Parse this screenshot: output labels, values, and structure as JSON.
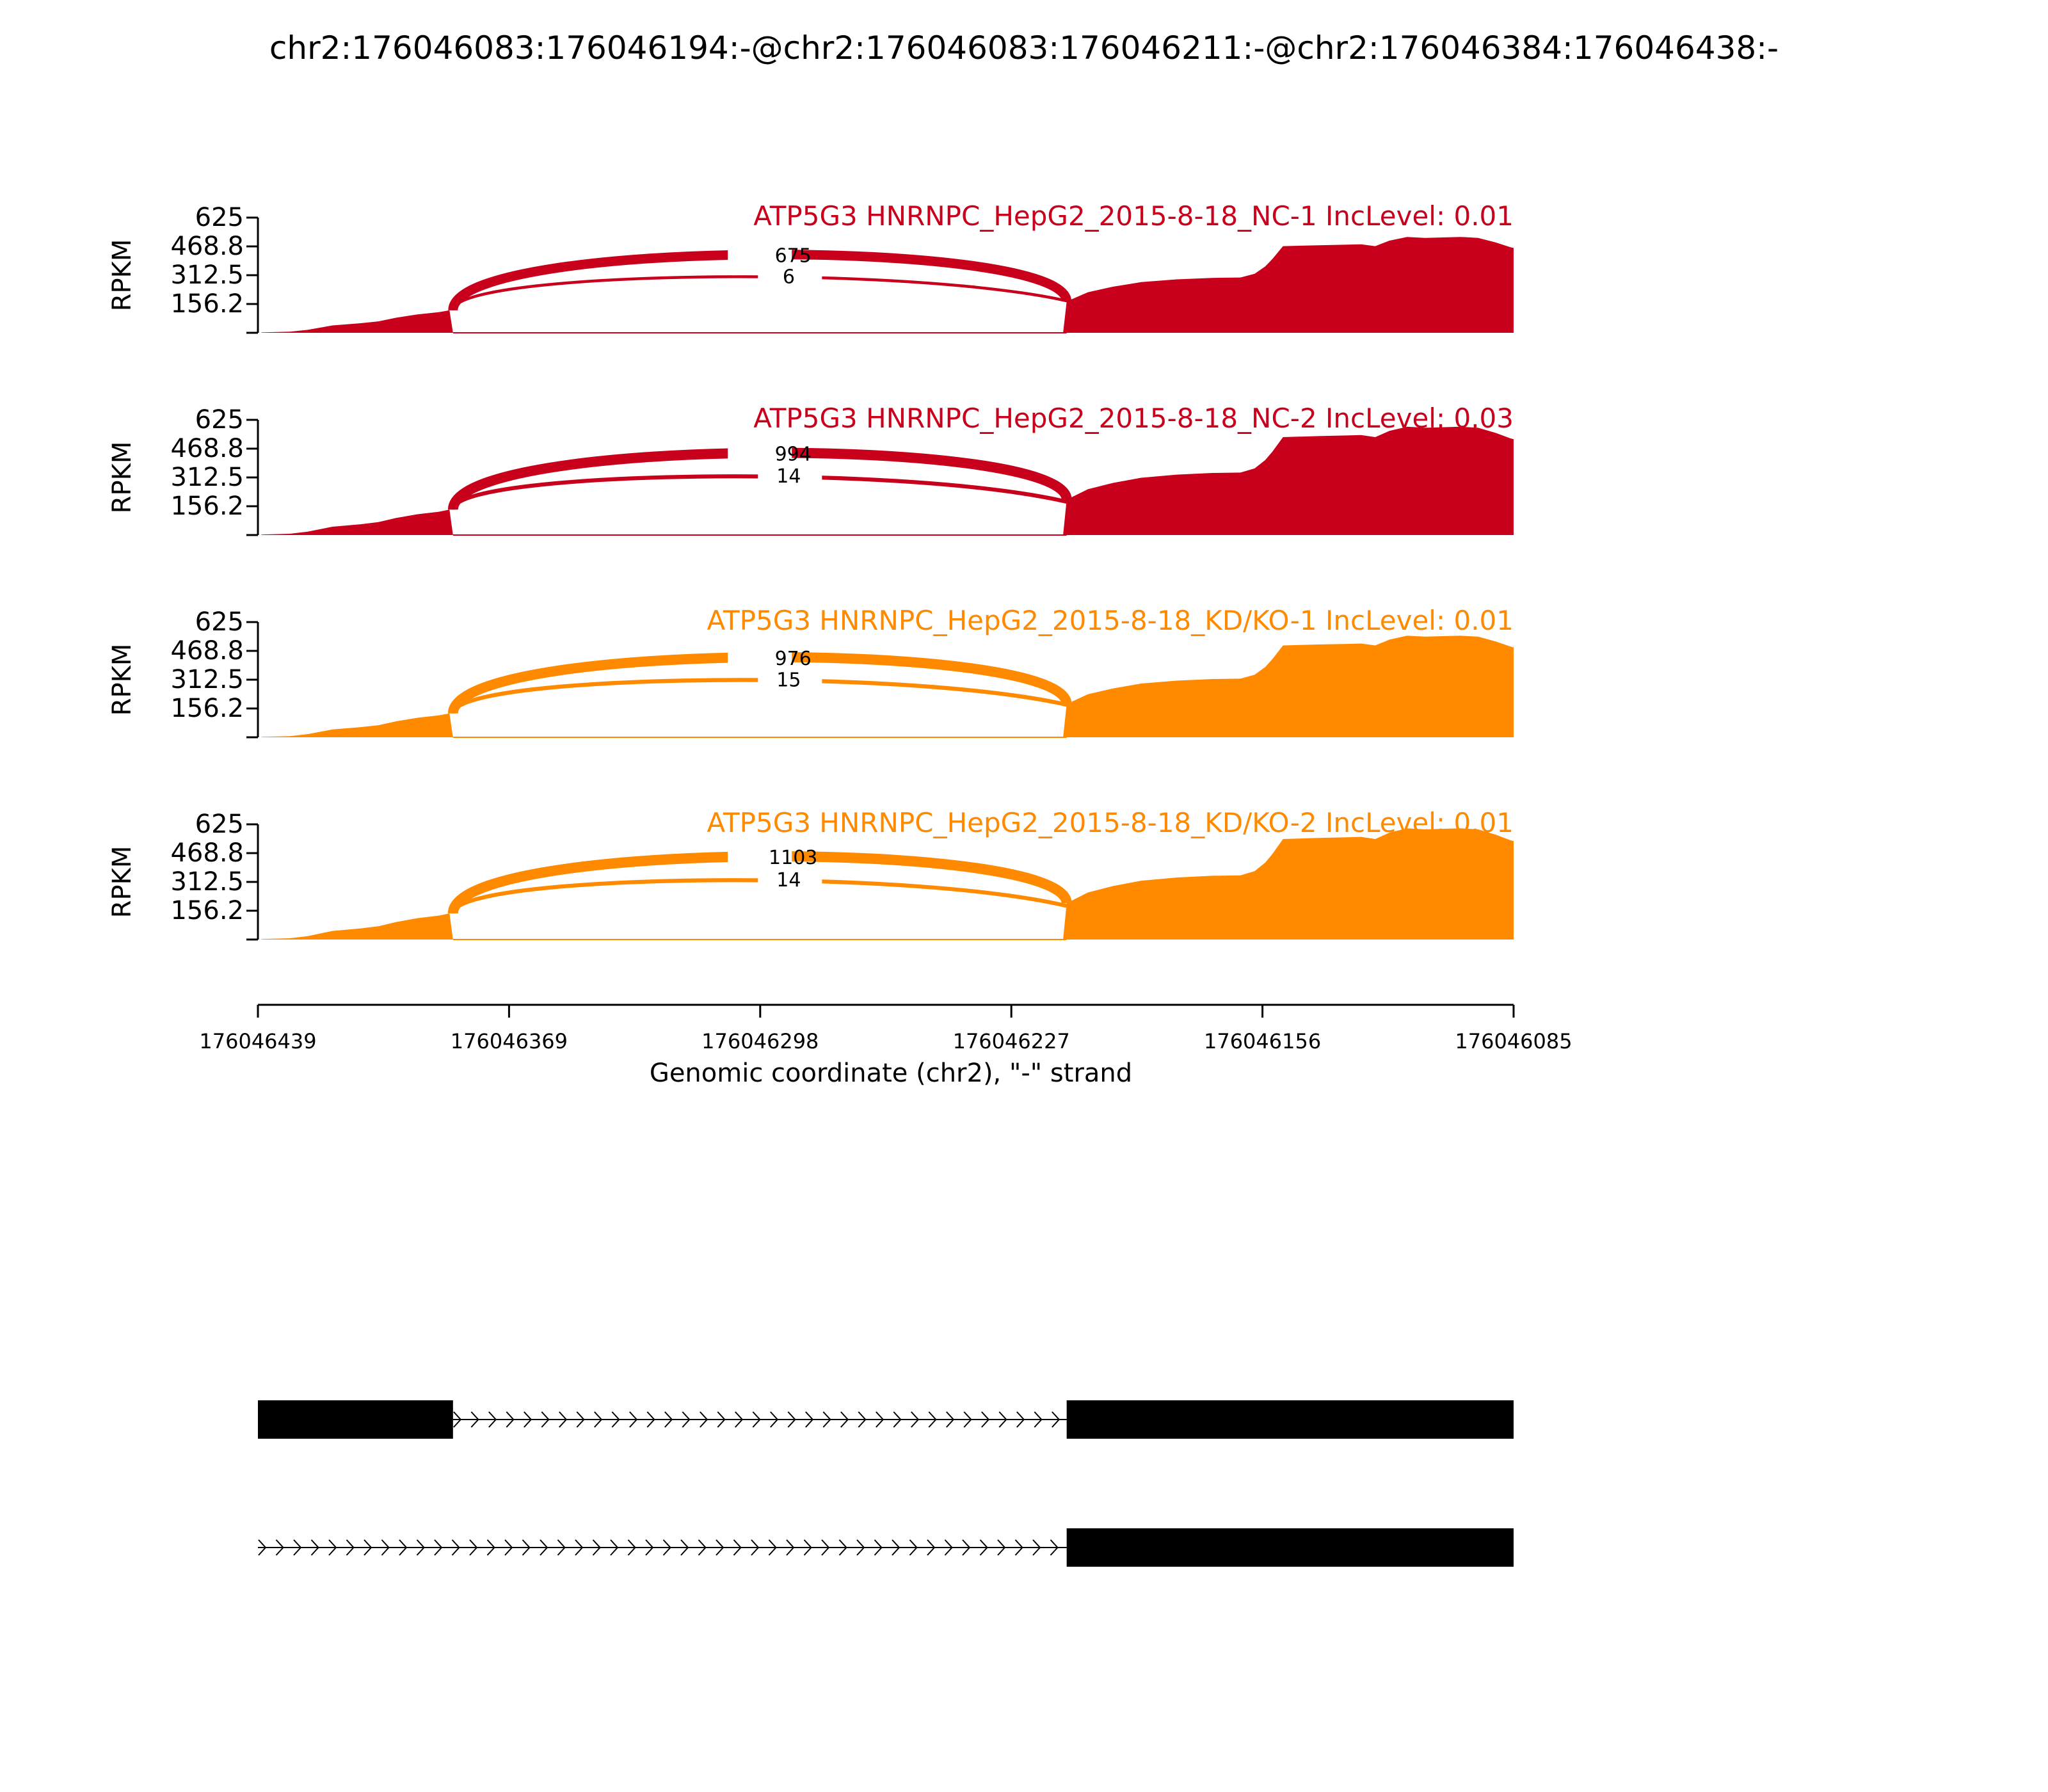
{
  "chart_data": {
    "type": "area",
    "title": "chr2:176046083:176046194:-@chr2:176046083:176046211:-@chr2:176046384:176046438:-",
    "xlabel": "Genomic coordinate (chr2), \"-\" strand",
    "ylabel": "RPKM",
    "ylim": [
      0,
      625
    ],
    "yticks": [
      "625",
      "468.8",
      "312.5",
      "156.2"
    ],
    "x_axis": {
      "start": 176046439,
      "end": 176046085,
      "reversed": true,
      "tick_labels": [
        "176046439",
        "176046369",
        "176046298",
        "176046227",
        "176046156",
        "176046085"
      ]
    },
    "colors": {
      "nc": "#c9001c",
      "kd": "#ff8a00",
      "text": "#000000",
      "gene": "#000000"
    },
    "exons": {
      "upstream": [
        176046439,
        176046384
      ],
      "downstream": [
        176046211,
        176046085
      ],
      "skipped_region_end": 176046194
    },
    "coverage_profile": [
      [
        176046438,
        2
      ],
      [
        176046430,
        6
      ],
      [
        176046425,
        16
      ],
      [
        176046418,
        40
      ],
      [
        176046410,
        52
      ],
      [
        176046405,
        62
      ],
      [
        176046400,
        82
      ],
      [
        176046394,
        100
      ],
      [
        176046388,
        112
      ],
      [
        176046385,
        122
      ],
      [
        176046384,
        0
      ],
      [
        176046212,
        0
      ],
      [
        176046211,
        170
      ],
      [
        176046205,
        220
      ],
      [
        176046198,
        250
      ],
      [
        176046190,
        275
      ],
      [
        176046180,
        290
      ],
      [
        176046170,
        298
      ],
      [
        176046162,
        300
      ],
      [
        176046158,
        320
      ],
      [
        176046155,
        360
      ],
      [
        176046153,
        400
      ],
      [
        176046150,
        470
      ],
      [
        176046140,
        475
      ],
      [
        176046132,
        478
      ],
      [
        176046128,
        480
      ],
      [
        176046124,
        470
      ],
      [
        176046120,
        500
      ],
      [
        176046115,
        520
      ],
      [
        176046110,
        515
      ],
      [
        176046100,
        520
      ],
      [
        176046095,
        515
      ],
      [
        176046090,
        490
      ],
      [
        176046086,
        465
      ],
      [
        176046085,
        460
      ]
    ],
    "series": [
      {
        "name": "ATP5G3 HNRNPC_HepG2_2015-8-18_NC-1 IncLevel: 0.01",
        "group": "nc",
        "scale": 1.0,
        "junctions": [
          {
            "from": 176046384,
            "to": 176046211,
            "label": "675",
            "count": 675
          },
          {
            "from": 176046384,
            "to": 176046194,
            "label": "6",
            "count": 6
          }
        ]
      },
      {
        "name": "ATP5G3 HNRNPC_HepG2_2015-8-18_NC-2 IncLevel: 0.03",
        "group": "nc",
        "scale": 1.13,
        "junctions": [
          {
            "from": 176046384,
            "to": 176046211,
            "label": "994",
            "count": 994
          },
          {
            "from": 176046384,
            "to": 176046194,
            "label": "14",
            "count": 14
          }
        ]
      },
      {
        "name": "ATP5G3 HNRNPC_HepG2_2015-8-18_KD/KO-1 IncLevel: 0.01",
        "group": "kd",
        "scale": 1.06,
        "junctions": [
          {
            "from": 176046384,
            "to": 176046211,
            "label": "976",
            "count": 976
          },
          {
            "from": 176046384,
            "to": 176046194,
            "label": "15",
            "count": 15
          }
        ]
      },
      {
        "name": "ATP5G3 HNRNPC_HepG2_2015-8-18_KD/KO-2 IncLevel: 0.01",
        "group": "kd",
        "scale": 1.16,
        "junctions": [
          {
            "from": 176046384,
            "to": 176046211,
            "label": "1103",
            "count": 1103
          },
          {
            "from": 176046384,
            "to": 176046194,
            "label": "14",
            "count": 14
          }
        ]
      }
    ],
    "isoforms": [
      {
        "exons": [
          [
            176046439,
            176046384
          ],
          [
            176046211,
            176046085
          ]
        ]
      },
      {
        "exons": [
          [
            176046211,
            176046085
          ]
        ],
        "intron_from": 176046439
      }
    ]
  }
}
